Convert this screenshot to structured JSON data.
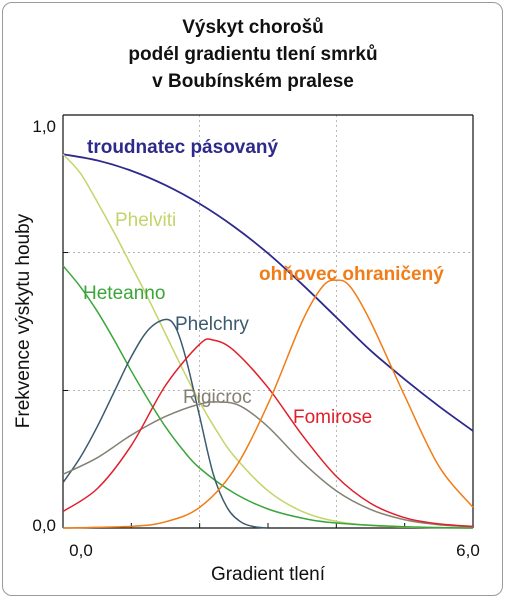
{
  "chart_data": {
    "type": "line",
    "title_lines": [
      "Výskyt chorošů",
      "podél gradientu tlení smrků",
      "v Boubínském pralese"
    ],
    "xlabel": "Gradient tlení",
    "ylabel": "Frekvence výskytu houby",
    "xlim": [
      0,
      6
    ],
    "ylim": [
      0,
      1
    ],
    "x_tick_labels": [
      "0,0",
      "6,0"
    ],
    "y_tick_labels": [
      "0,0",
      "1,0"
    ],
    "grid": "dashed minor gridlines",
    "series": [
      {
        "name": "troudnatec pásovaný",
        "color": "#2e2a8c",
        "label_bold": true,
        "points": [
          [
            0,
            0.905
          ],
          [
            0.5,
            0.89
          ],
          [
            1,
            0.865
          ],
          [
            1.5,
            0.83
          ],
          [
            2,
            0.785
          ],
          [
            2.5,
            0.73
          ],
          [
            3,
            0.665
          ],
          [
            3.5,
            0.59
          ],
          [
            4,
            0.51
          ],
          [
            4.5,
            0.43
          ],
          [
            5,
            0.36
          ],
          [
            5.5,
            0.295
          ],
          [
            6,
            0.235
          ]
        ]
      },
      {
        "name": "Phelviti",
        "color": "#c5d46a",
        "label_bold": false,
        "points": [
          [
            0,
            0.905
          ],
          [
            0.25,
            0.86
          ],
          [
            0.5,
            0.79
          ],
          [
            0.75,
            0.715
          ],
          [
            1,
            0.635
          ],
          [
            1.25,
            0.555
          ],
          [
            1.5,
            0.47
          ],
          [
            1.75,
            0.385
          ],
          [
            2,
            0.305
          ],
          [
            2.25,
            0.235
          ],
          [
            2.5,
            0.175
          ],
          [
            3,
            0.09
          ],
          [
            3.5,
            0.04
          ],
          [
            4,
            0.016
          ],
          [
            4.5,
            0.006
          ],
          [
            5,
            0.002
          ],
          [
            6,
            0
          ]
        ]
      },
      {
        "name": "Heteanno",
        "color": "#3aa63a",
        "label_bold": false,
        "points": [
          [
            0,
            0.635
          ],
          [
            0.25,
            0.585
          ],
          [
            0.5,
            0.525
          ],
          [
            0.75,
            0.455
          ],
          [
            1,
            0.38
          ],
          [
            1.25,
            0.31
          ],
          [
            1.5,
            0.245
          ],
          [
            1.75,
            0.19
          ],
          [
            2,
            0.145
          ],
          [
            2.5,
            0.085
          ],
          [
            3,
            0.046
          ],
          [
            3.5,
            0.024
          ],
          [
            4,
            0.012
          ],
          [
            5,
            0.003
          ],
          [
            6,
            0
          ]
        ]
      },
      {
        "name": "Phelchry",
        "color": "#3a5a6e",
        "label_bold": false,
        "points": [
          [
            0,
            0.11
          ],
          [
            0.25,
            0.17
          ],
          [
            0.5,
            0.245
          ],
          [
            0.75,
            0.33
          ],
          [
            1,
            0.415
          ],
          [
            1.25,
            0.48
          ],
          [
            1.5,
            0.505
          ],
          [
            1.65,
            0.485
          ],
          [
            1.8,
            0.41
          ],
          [
            2,
            0.27
          ],
          [
            2.2,
            0.13
          ],
          [
            2.4,
            0.05
          ],
          [
            2.6,
            0.015
          ],
          [
            2.8,
            0.003
          ],
          [
            3,
            0
          ]
        ]
      },
      {
        "name": "Rigicroc",
        "color": "#858075",
        "label_bold": false,
        "points": [
          [
            0,
            0.13
          ],
          [
            0.5,
            0.17
          ],
          [
            1,
            0.225
          ],
          [
            1.5,
            0.27
          ],
          [
            2,
            0.3
          ],
          [
            2.3,
            0.305
          ],
          [
            2.6,
            0.295
          ],
          [
            3,
            0.245
          ],
          [
            3.5,
            0.16
          ],
          [
            4,
            0.09
          ],
          [
            4.5,
            0.045
          ],
          [
            5,
            0.02
          ],
          [
            5.5,
            0.008
          ],
          [
            6,
            0.003
          ]
        ]
      },
      {
        "name": "Fomirose",
        "color": "#e0202a",
        "label_bold": false,
        "points": [
          [
            0,
            0.04
          ],
          [
            0.5,
            0.095
          ],
          [
            1,
            0.2
          ],
          [
            1.5,
            0.345
          ],
          [
            2,
            0.445
          ],
          [
            2.2,
            0.455
          ],
          [
            2.5,
            0.43
          ],
          [
            3,
            0.34
          ],
          [
            3.5,
            0.225
          ],
          [
            4,
            0.125
          ],
          [
            4.5,
            0.06
          ],
          [
            5,
            0.025
          ],
          [
            5.5,
            0.01
          ],
          [
            6,
            0.004
          ]
        ]
      },
      {
        "name": "ohňovec ohraničený",
        "color": "#f07d18",
        "label_bold": true,
        "points": [
          [
            0,
            0
          ],
          [
            1,
            0.004
          ],
          [
            1.5,
            0.015
          ],
          [
            2,
            0.05
          ],
          [
            2.5,
            0.14
          ],
          [
            3,
            0.3
          ],
          [
            3.5,
            0.5
          ],
          [
            3.8,
            0.585
          ],
          [
            4,
            0.6
          ],
          [
            4.2,
            0.585
          ],
          [
            4.5,
            0.5
          ],
          [
            5,
            0.32
          ],
          [
            5.5,
            0.15
          ],
          [
            6,
            0.05
          ]
        ]
      }
    ]
  }
}
